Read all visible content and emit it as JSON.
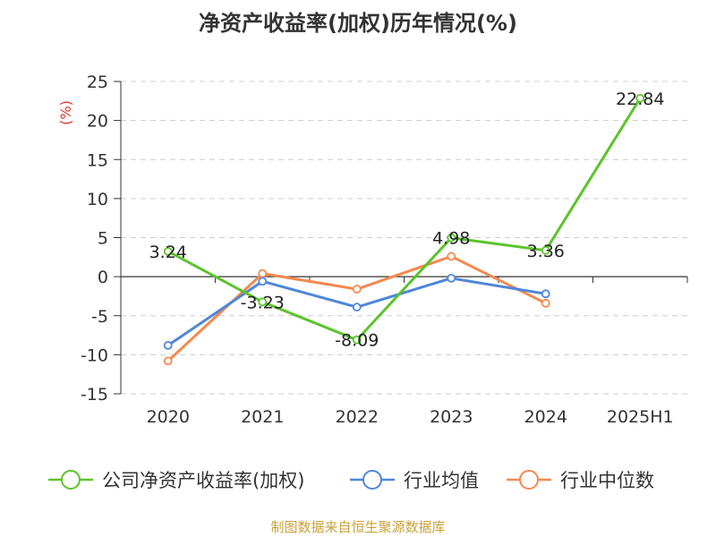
{
  "chart_data": {
    "type": "line",
    "title": "净资产收益率(加权)历年情况(%)",
    "ylabel": "(%)",
    "categories": [
      "2020",
      "2021",
      "2022",
      "2023",
      "2024",
      "2025H1"
    ],
    "ylim": [
      -15,
      25
    ],
    "yticks": [
      25,
      20,
      15,
      10,
      5,
      0,
      -5,
      -10,
      -15
    ],
    "grid": true,
    "legend_position": "bottom",
    "series": [
      {
        "name": "公司净资产收益率(加权)",
        "color": "#5bc42b",
        "values": [
          3.24,
          -3.23,
          -8.09,
          4.98,
          3.36,
          22.84
        ],
        "labels": [
          "3.24",
          "-3.23",
          "-8.09",
          "4.98",
          "3.36",
          "22.84"
        ]
      },
      {
        "name": "行业均值",
        "color": "#4f86d9",
        "values": [
          -8.8,
          -0.6,
          -3.9,
          -0.2,
          -2.2,
          null
        ]
      },
      {
        "name": "行业中位数",
        "color": "#f5894f",
        "values": [
          -10.8,
          0.4,
          -1.6,
          2.6,
          -3.4,
          null
        ]
      }
    ]
  },
  "source": "制图数据来自恒生聚源数据库"
}
